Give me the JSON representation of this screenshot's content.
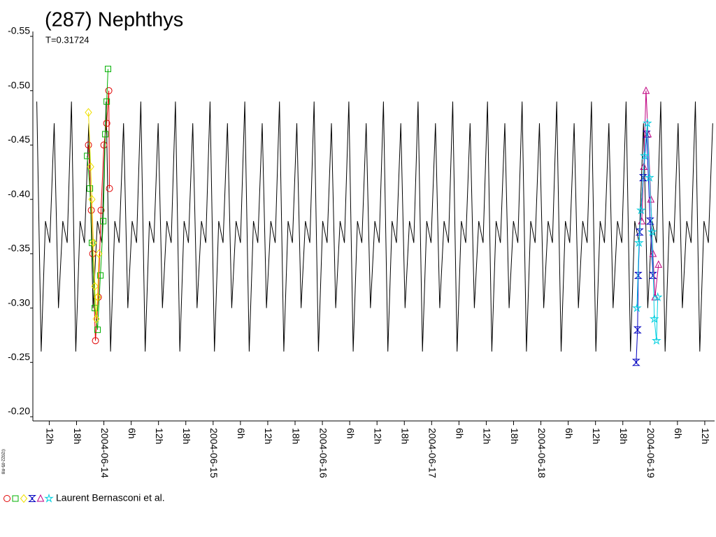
{
  "chart_data": {
    "type": "lightcurve",
    "title": "(287) Nephthys",
    "subtitle": "T=0.31724",
    "credit": "©2022-05-R8",
    "legend_label": "Laurent Bernasconi et al.",
    "ylim": [
      -0.55,
      -0.2
    ],
    "y_reversed": true,
    "yticks": [
      -0.55,
      {
        "value": -0.5,
        "label": "-0.50"
      },
      -0.45,
      {
        "value": -0.4,
        "label": "-0.40"
      },
      -0.35,
      {
        "value": -0.3,
        "label": "-0.30"
      },
      -0.25,
      {
        "value": -0.2,
        "label": "-0.20"
      }
    ],
    "xlim": [
      2453169.85,
      2453176.09
    ],
    "xticks": [
      {
        "value": 2453170.0,
        "label": "12h"
      },
      {
        "value": 2453170.25,
        "label": "18h"
      },
      {
        "value": 2453170.5,
        "label": "2004-06-14"
      },
      {
        "value": 2453170.75,
        "label": "6h"
      },
      {
        "value": 2453171.0,
        "label": "12h"
      },
      {
        "value": 2453171.25,
        "label": "18h"
      },
      {
        "value": 2453171.5,
        "label": "2004-06-15"
      },
      {
        "value": 2453171.75,
        "label": "6h"
      },
      {
        "value": 2453172.0,
        "label": "12h"
      },
      {
        "value": 2453172.25,
        "label": "18h"
      },
      {
        "value": 2453172.5,
        "label": "2004-06-16"
      },
      {
        "value": 2453172.75,
        "label": "6h"
      },
      {
        "value": 2453173.0,
        "label": "12h"
      },
      {
        "value": 2453173.25,
        "label": "18h"
      },
      {
        "value": 2453173.5,
        "label": "2004-06-17"
      },
      {
        "value": 2453173.75,
        "label": "6h"
      },
      {
        "value": 2453174.0,
        "label": "12h"
      },
      {
        "value": 2453174.25,
        "label": "18h"
      },
      {
        "value": 2453174.5,
        "label": "2004-06-18"
      },
      {
        "value": 2453174.75,
        "label": "6h"
      },
      {
        "value": 2453175.0,
        "label": "12h"
      },
      {
        "value": 2453175.25,
        "label": "18h"
      },
      {
        "value": 2453175.5,
        "label": "2004-06-19"
      },
      {
        "value": 2453175.75,
        "label": "6h"
      },
      {
        "value": 2453176.0,
        "label": "12h"
      }
    ],
    "model": {
      "color": "#000000",
      "x": [
        2453169.886,
        2453169.926,
        2453169.965,
        2453170.005,
        2453170.045,
        2453170.084,
        2453170.124,
        2453170.164,
        2453170.203,
        2453170.243,
        2453170.282,
        2453170.322,
        2453170.362,
        2453170.401,
        2453170.441,
        2453170.481,
        2453170.521,
        2453170.561,
        2453170.6,
        2453170.64,
        2453170.68,
        2453170.719,
        2453170.759,
        2453170.799,
        2453170.838,
        2453170.878,
        2453170.917,
        2453170.957,
        2453170.997,
        2453171.036,
        2453171.076,
        2453171.116,
        2453171.155,
        2453171.195,
        2453171.234,
        2453171.274,
        2453171.314,
        2453171.353,
        2453171.393,
        2453171.433,
        2453171.472,
        2453171.512,
        2453171.551,
        2453171.591,
        2453171.631,
        2453171.67,
        2453171.71,
        2453171.75,
        2453171.79,
        2453171.83,
        2453171.869,
        2453171.909,
        2453171.949,
        2453171.988,
        2453172.028,
        2453172.068,
        2453172.107,
        2453172.147,
        2453172.186,
        2453172.226,
        2453172.266,
        2453172.305,
        2453172.345,
        2453172.385,
        2453172.424,
        2453172.464,
        2453172.503,
        2453172.543,
        2453172.583,
        2453172.622,
        2453172.662,
        2453172.702,
        2453172.742,
        2453172.782,
        2453172.821,
        2453172.861,
        2453172.901,
        2453172.94,
        2453172.98,
        2453173.02,
        2453173.059,
        2453173.099,
        2453173.138,
        2453173.178,
        2453173.218,
        2453173.257,
        2453173.297,
        2453173.337,
        2453173.376,
        2453173.416,
        2453173.455,
        2453173.495,
        2453173.535,
        2453173.574,
        2453173.614,
        2453173.654,
        2453173.693,
        2453173.733,
        2453173.772,
        2453173.812,
        2453173.852,
        2453173.891,
        2453173.931,
        2453173.971,
        2453174.011,
        2453174.051,
        2453174.09,
        2453174.13,
        2453174.17,
        2453174.209,
        2453174.249,
        2453174.289,
        2453174.328,
        2453174.368,
        2453174.407,
        2453174.447,
        2453174.487,
        2453174.526,
        2453174.566,
        2453174.606,
        2453174.645,
        2453174.685,
        2453174.724,
        2453174.764,
        2453174.804,
        2453174.843,
        2453174.883,
        2453174.923,
        2453174.963,
        2453175.003,
        2453175.042,
        2453175.082,
        2453175.122,
        2453175.161,
        2453175.201,
        2453175.241,
        2453175.28,
        2453175.32,
        2453175.359,
        2453175.399,
        2453175.439,
        2453175.478,
        2453175.518,
        2453175.558,
        2453175.597,
        2453175.637,
        2453175.676,
        2453175.716,
        2453175.756,
        2453175.795,
        2453175.835,
        2453175.875,
        2453175.914,
        2453175.954,
        2453175.993,
        2453176.033,
        2453176.073
      ],
      "values": [
        -0.49,
        -0.26,
        -0.38,
        -0.36,
        -0.47,
        -0.3,
        -0.38,
        -0.36,
        -0.49,
        -0.26,
        -0.38,
        -0.36,
        -0.47,
        -0.3,
        -0.38,
        -0.36,
        -0.49,
        -0.26,
        -0.38,
        -0.36,
        -0.47,
        -0.3,
        -0.38,
        -0.36,
        -0.49,
        -0.26,
        -0.38,
        -0.36,
        -0.47,
        -0.3,
        -0.38,
        -0.36,
        -0.49,
        -0.26,
        -0.38,
        -0.36,
        -0.47,
        -0.3,
        -0.38,
        -0.36,
        -0.49,
        -0.26,
        -0.38,
        -0.36,
        -0.47,
        -0.3,
        -0.38,
        -0.36,
        -0.49,
        -0.26,
        -0.38,
        -0.36,
        -0.47,
        -0.3,
        -0.38,
        -0.36,
        -0.49,
        -0.26,
        -0.38,
        -0.36,
        -0.47,
        -0.3,
        -0.38,
        -0.36,
        -0.49,
        -0.26,
        -0.38,
        -0.36,
        -0.47,
        -0.3,
        -0.38,
        -0.36,
        -0.49,
        -0.26,
        -0.38,
        -0.36,
        -0.47,
        -0.3,
        -0.38,
        -0.36,
        -0.49,
        -0.26,
        -0.38,
        -0.36,
        -0.47,
        -0.3,
        -0.38,
        -0.36,
        -0.49,
        -0.26,
        -0.38,
        -0.36,
        -0.47,
        -0.3,
        -0.38,
        -0.36,
        -0.49,
        -0.26,
        -0.38,
        -0.36,
        -0.47,
        -0.3,
        -0.38,
        -0.36,
        -0.49,
        -0.26,
        -0.38,
        -0.36,
        -0.47,
        -0.3,
        -0.38,
        -0.36,
        -0.49,
        -0.26,
        -0.38,
        -0.36,
        -0.47,
        -0.3,
        -0.38,
        -0.36,
        -0.49,
        -0.26,
        -0.38,
        -0.36,
        -0.47,
        -0.3,
        -0.38,
        -0.36,
        -0.49,
        -0.26,
        -0.38,
        -0.36,
        -0.47,
        -0.3,
        -0.38,
        -0.36,
        -0.49,
        -0.26,
        -0.38,
        -0.36,
        -0.47,
        -0.3,
        -0.38,
        -0.36,
        -0.49,
        -0.26,
        -0.38,
        -0.36,
        -0.47,
        -0.3,
        -0.38,
        -0.36,
        -0.49,
        -0.26,
        -0.38,
        -0.36,
        -0.47
      ]
    },
    "series": [
      {
        "marker": "circle",
        "color": "#e00000",
        "x": [
          2453170.359,
          2453170.385,
          2453170.398,
          2453170.423,
          2453170.449,
          2453170.474,
          2453170.5,
          2453170.526,
          2453170.545,
          2453170.551
        ],
        "values": [
          -0.45,
          -0.39,
          -0.35,
          -0.27,
          -0.31,
          -0.39,
          -0.45,
          -0.47,
          -0.5,
          -0.41
        ]
      },
      {
        "marker": "square",
        "color": "#00b000",
        "x": [
          2453170.347,
          2453170.372,
          2453170.391,
          2453170.417,
          2453170.442,
          2453170.468,
          2453170.494,
          2453170.513,
          2453170.526,
          2453170.538
        ],
        "values": [
          -0.44,
          -0.41,
          -0.36,
          -0.3,
          -0.28,
          -0.33,
          -0.38,
          -0.46,
          -0.49,
          -0.52
        ]
      },
      {
        "marker": "diamond",
        "color": "#f0e000",
        "x": [
          2453170.359,
          2453170.379,
          2453170.391,
          2453170.404,
          2453170.417,
          2453170.43,
          2453170.442,
          2453170.455
        ],
        "values": [
          -0.48,
          -0.43,
          -0.4,
          -0.36,
          -0.32,
          -0.29,
          -0.31,
          -0.35
        ]
      },
      {
        "marker": "hourglass",
        "color": "#0000c0",
        "x": [
          2453175.372,
          2453175.385,
          2453175.391,
          2453175.404,
          2453175.436,
          2453175.468,
          2453175.5,
          2453175.526
        ],
        "values": [
          -0.25,
          -0.28,
          -0.33,
          -0.37,
          -0.42,
          -0.46,
          -0.38,
          -0.33
        ]
      },
      {
        "marker": "triangle",
        "color": "#c00080",
        "x": [
          2453175.423,
          2453175.442,
          2453175.462,
          2453175.481,
          2453175.506,
          2453175.526,
          2453175.545,
          2453175.577
        ],
        "values": [
          -0.38,
          -0.43,
          -0.5,
          -0.46,
          -0.4,
          -0.35,
          -0.31,
          -0.34
        ]
      },
      {
        "marker": "star",
        "color": "#00d0e0",
        "x": [
          2453175.379,
          2453175.398,
          2453175.417,
          2453175.449,
          2453175.474,
          2453175.494,
          2453175.519,
          2453175.538,
          2453175.558,
          2453175.57
        ],
        "values": [
          -0.3,
          -0.36,
          -0.39,
          -0.44,
          -0.47,
          -0.42,
          -0.37,
          -0.29,
          -0.27,
          -0.31
        ]
      }
    ]
  }
}
